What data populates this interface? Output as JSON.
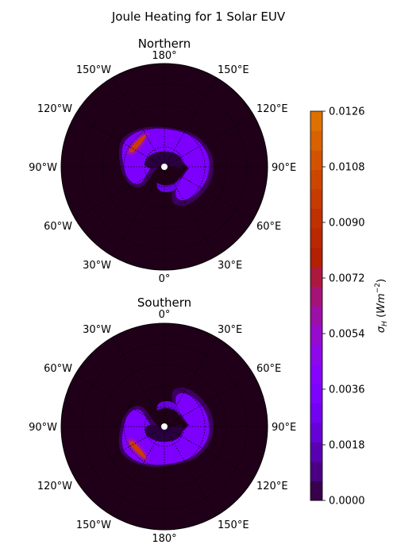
{
  "chart_data": {
    "type": "heatmap",
    "title": "Joule Heating for 1 Solar EUV",
    "projection": "polar",
    "panels": [
      {
        "name": "Northern",
        "lon_labels": {
          "top": "180°",
          "upper_right": "150°E",
          "right_upper": "120°E",
          "right": "90°E",
          "right_lower": "60°E",
          "lower_right": "30°E",
          "bottom": "0°",
          "lower_left": "30°W",
          "left_lower": "60°W",
          "left": "90°W",
          "left_upper": "120°W",
          "upper_left": "150°W"
        }
      },
      {
        "name": "Southern",
        "lon_labels": {
          "top": "0°",
          "upper_right": "30°E",
          "right_upper": "60°E",
          "right": "90°E",
          "right_lower": "120°E",
          "lower_right": "150°E",
          "bottom": "180°",
          "lower_left": "150°W",
          "left_lower": "120°W",
          "left": "90°W",
          "left_upper": "60°W",
          "upper_left": "30°W"
        }
      }
    ],
    "colorbar": {
      "label": "σH (Wm−2)",
      "label_main": "σ",
      "label_sub": "H",
      "label_paren_open": " (",
      "label_unit": "Wm",
      "label_sup": "−2",
      "label_paren_close": ")",
      "range": [
        0.0,
        0.0126
      ],
      "ticks": [
        "0.0000",
        "0.0018",
        "0.0036",
        "0.0054",
        "0.0072",
        "0.0090",
        "0.0108",
        "0.0126"
      ],
      "colormap": "gnuplot",
      "levels": 20
    },
    "grid": true,
    "background_color": "#200018",
    "accent_colors": {
      "low": "#200018",
      "mid": "#8000ff",
      "high": "#cc3b00"
    }
  }
}
